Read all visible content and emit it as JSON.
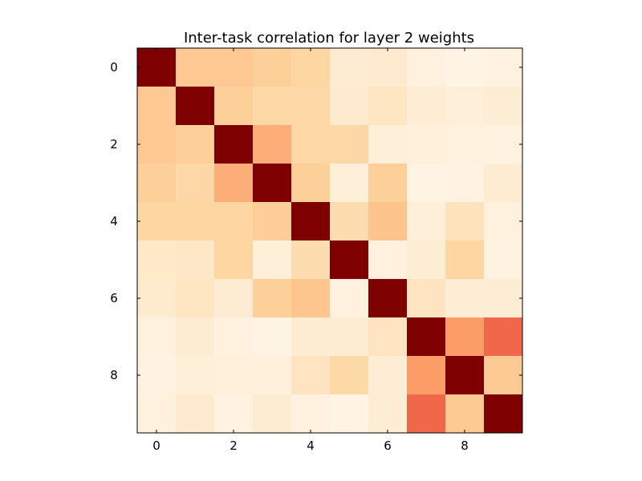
{
  "chart_data": {
    "type": "heatmap",
    "title": "Inter-task correlation for layer 2 weights",
    "xlabel": "",
    "ylabel": "",
    "rows": 10,
    "cols": 10,
    "xticks": [
      0,
      2,
      4,
      6,
      8
    ],
    "yticks": [
      0,
      2,
      4,
      6,
      8
    ],
    "xlim": [
      -0.5,
      9.5
    ],
    "ylim": [
      9.5,
      -0.5
    ],
    "colormap": "OrRd",
    "colormap_stops": [
      "#fff7ec",
      "#fee8c8",
      "#fdd49e",
      "#fdbb84",
      "#fc8d59",
      "#ef6548",
      "#d7301f",
      "#b30000",
      "#7f0000"
    ],
    "value_range": [
      0,
      1
    ],
    "grid": false,
    "legend": "none",
    "values": [
      [
        1.0,
        0.31,
        0.31,
        0.27,
        0.24,
        0.09,
        0.1,
        0.05,
        0.03,
        0.04
      ],
      [
        0.31,
        1.0,
        0.27,
        0.23,
        0.23,
        0.1,
        0.14,
        0.08,
        0.07,
        0.08
      ],
      [
        0.31,
        0.27,
        1.0,
        0.41,
        0.23,
        0.23,
        0.07,
        0.06,
        0.05,
        0.04
      ],
      [
        0.27,
        0.23,
        0.41,
        1.0,
        0.27,
        0.07,
        0.27,
        0.03,
        0.04,
        0.09
      ],
      [
        0.24,
        0.24,
        0.24,
        0.28,
        1.0,
        0.2,
        0.33,
        0.07,
        0.16,
        0.05
      ],
      [
        0.12,
        0.13,
        0.24,
        0.07,
        0.2,
        1.0,
        0.05,
        0.08,
        0.24,
        0.04
      ],
      [
        0.11,
        0.14,
        0.09,
        0.27,
        0.32,
        0.05,
        1.0,
        0.15,
        0.08,
        0.08
      ],
      [
        0.05,
        0.09,
        0.05,
        0.03,
        0.09,
        0.09,
        0.15,
        1.0,
        0.46,
        0.62
      ],
      [
        0.04,
        0.07,
        0.06,
        0.06,
        0.15,
        0.22,
        0.08,
        0.46,
        1.0,
        0.3
      ],
      [
        0.05,
        0.1,
        0.04,
        0.09,
        0.05,
        0.03,
        0.08,
        0.62,
        0.3,
        1.0
      ]
    ]
  }
}
